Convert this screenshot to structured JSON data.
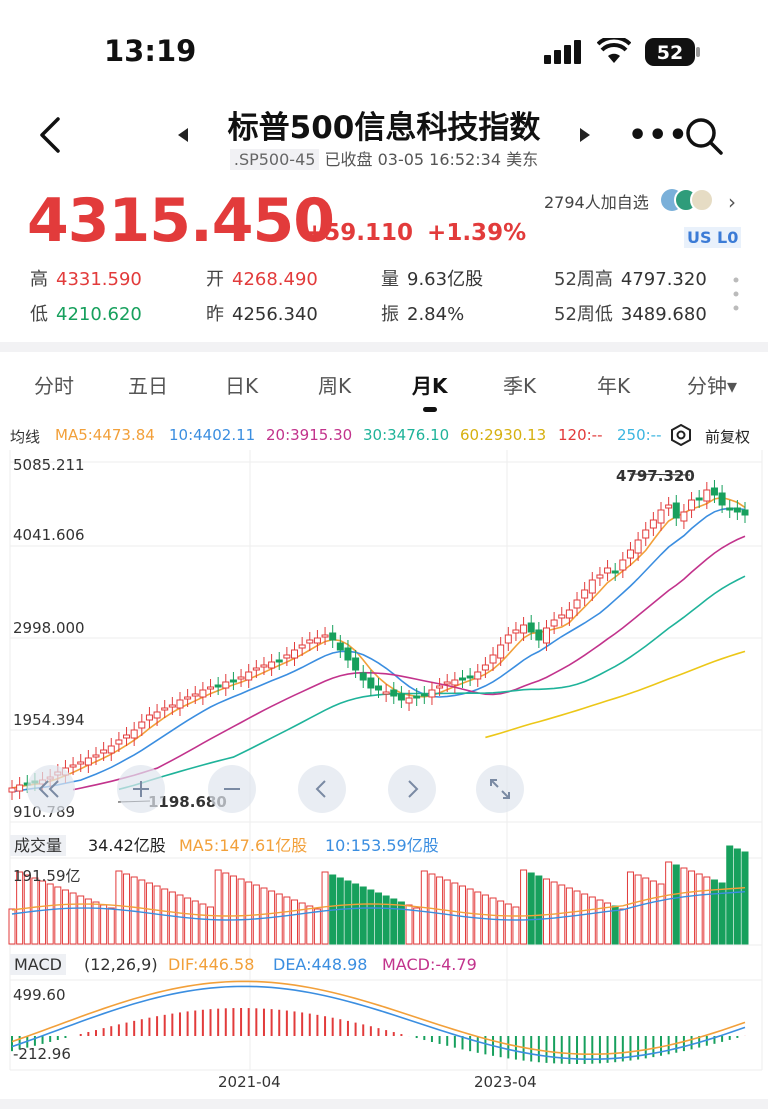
{
  "status_bar": {
    "time": "13:19",
    "battery": "52"
  },
  "header": {
    "title": "标普500信息科技指数",
    "code": ".SP500-45",
    "status": "已收盘 03-05 16:52:34 美东"
  },
  "quote": {
    "price": "4315.450",
    "change": "+59.110",
    "change_pct": "+1.39%",
    "followers": "2794人加自选",
    "tags": [
      "US",
      "L0"
    ],
    "stats": {
      "high_label": "高",
      "high": "4331.590",
      "open_label": "开",
      "open": "4268.490",
      "volume_label": "量",
      "volume": "9.63亿股",
      "w52_high_label": "52周高",
      "w52_high": "4797.320",
      "low_label": "低",
      "low": "4210.620",
      "prev_label": "昨",
      "prev": "4256.340",
      "amp_label": "振",
      "amp": "2.84%",
      "w52_low_label": "52周低",
      "w52_low": "3489.680"
    }
  },
  "tabs": [
    "分时",
    "五日",
    "日K",
    "周K",
    "月K",
    "季K",
    "年K",
    "分钟▾"
  ],
  "active_tab": "月K",
  "ma_legend": {
    "label": "均线",
    "ma5": "MA5:4473.84",
    "ma10": "10:4402.11",
    "ma20": "20:3915.30",
    "ma30": "30:3476.10",
    "ma60": "60:2930.13",
    "ma120": "120:--",
    "ma250": "250:--",
    "adjust": "前复权"
  },
  "kline": {
    "y_labels": [
      "5085.211",
      "4041.606",
      "2998.000",
      "1954.394",
      "910.789"
    ],
    "max_label": "4797.320",
    "min_label": "1198.680"
  },
  "volume": {
    "label": "成交量",
    "current": "34.42亿股",
    "ma5": "MA5:147.61亿股",
    "ma10": "10:153.59亿股",
    "y_label": "191.59亿"
  },
  "macd": {
    "label": "MACD",
    "params": "(12,26,9)",
    "dif": "DIF:446.58",
    "dea": "DEA:448.98",
    "macd": "MACD:-4.79",
    "y_top": "499.60",
    "y_bottom": "-212.96"
  },
  "x_axis": [
    "2021-04",
    "2023-04"
  ],
  "colors": {
    "up": "#e23b3b",
    "down": "#17a05d",
    "ma5": "#f2a03a",
    "ma10": "#3b8ee0",
    "ma20": "#c2338c",
    "ma30": "#1fb39a",
    "ma60": "#ecc718"
  },
  "icons": [
    "back-icon",
    "prev-arrow-icon",
    "next-arrow-icon",
    "more-icon",
    "search-icon",
    "settings-icon",
    "zoom-out-icon",
    "zoom-in-icon",
    "pan-left-icon",
    "pan-right-icon",
    "fullscreen-icon"
  ]
}
